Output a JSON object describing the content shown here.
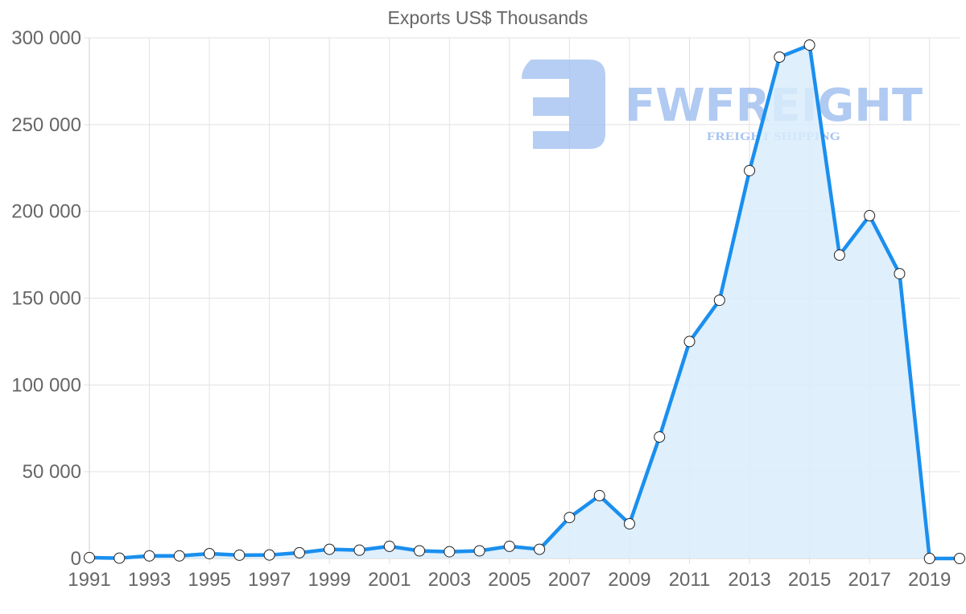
{
  "chart_data": {
    "type": "area",
    "title": "Exports US$ Thousands",
    "xlabel": "",
    "ylabel": "",
    "ylim": [
      0,
      300000
    ],
    "yticks": [
      0,
      50000,
      100000,
      150000,
      200000,
      250000,
      300000
    ],
    "ytick_labels": [
      "0",
      "50 000",
      "100 000",
      "150 000",
      "200 000",
      "250 000",
      "300 000"
    ],
    "x": [
      1991,
      1992,
      1993,
      1994,
      1995,
      1996,
      1997,
      1998,
      1999,
      2000,
      2001,
      2002,
      2003,
      2004,
      2005,
      2006,
      2007,
      2008,
      2009,
      2010,
      2011,
      2012,
      2013,
      2014,
      2015,
      2016,
      2017,
      2018,
      2019,
      2020
    ],
    "xtick_labels": [
      "1991",
      "1993",
      "1995",
      "1997",
      "1999",
      "2001",
      "2003",
      "2005",
      "2007",
      "2009",
      "2011",
      "2013",
      "2015",
      "2017",
      "2019"
    ],
    "series": [
      {
        "name": "Exports US$ Thousands",
        "values": [
          500,
          200,
          1500,
          1500,
          2800,
          1900,
          2000,
          3300,
          5300,
          4800,
          7000,
          4400,
          3900,
          4400,
          7000,
          5300,
          23600,
          36200,
          20000,
          70000,
          125000,
          148800,
          223500,
          288900,
          295800,
          174800,
          197500,
          164100,
          0,
          0
        ],
        "line_color": "#1a8fef",
        "fill_color": "#d9ecfc",
        "marker_fill": "#ffffff",
        "marker_stroke": "#222222"
      }
    ],
    "grid": true,
    "legend": "none"
  },
  "watermark": {
    "brand": "FWFREIGHT",
    "tagline": "FREIGHT SHIPPING",
    "color": "#9dbdf0"
  }
}
